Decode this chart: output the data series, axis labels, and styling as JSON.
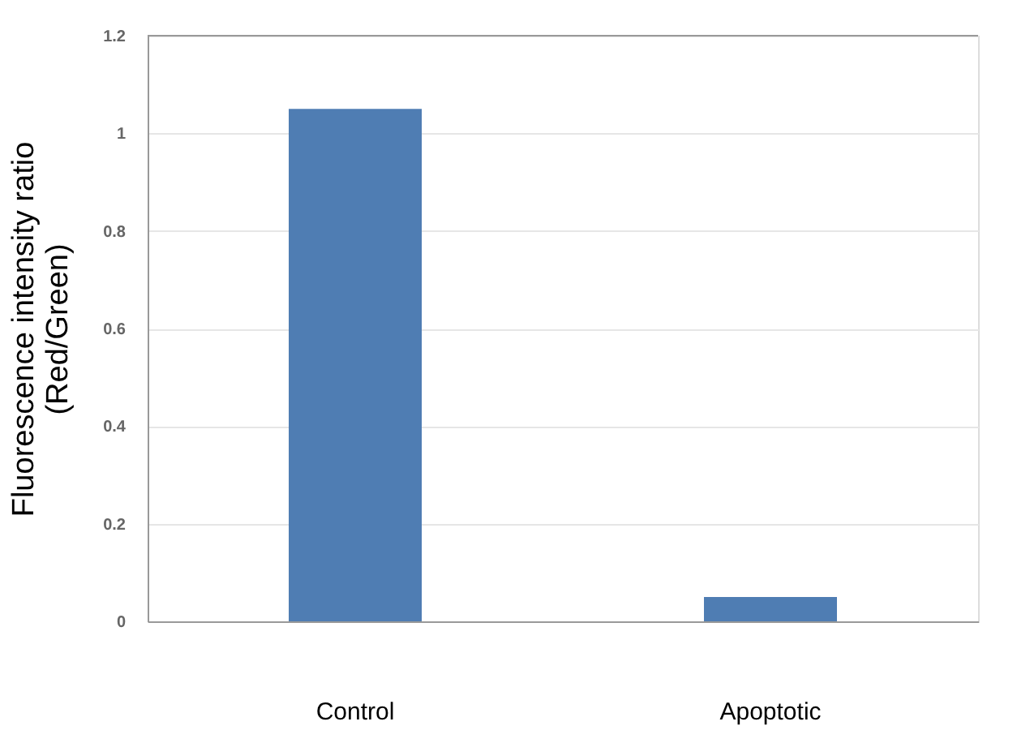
{
  "chart_data": {
    "type": "bar",
    "ylabel": "Fluorescence intensity ratio\n(Red/Green)",
    "categories": [
      "Control",
      "Apoptotic"
    ],
    "values": [
      1.05,
      0.05
    ],
    "color": "#4f7db3",
    "ylim": [
      0,
      1.2
    ],
    "yticks": [
      0,
      0.2,
      0.4,
      0.6,
      0.8,
      1,
      1.2
    ],
    "grid": "y"
  }
}
